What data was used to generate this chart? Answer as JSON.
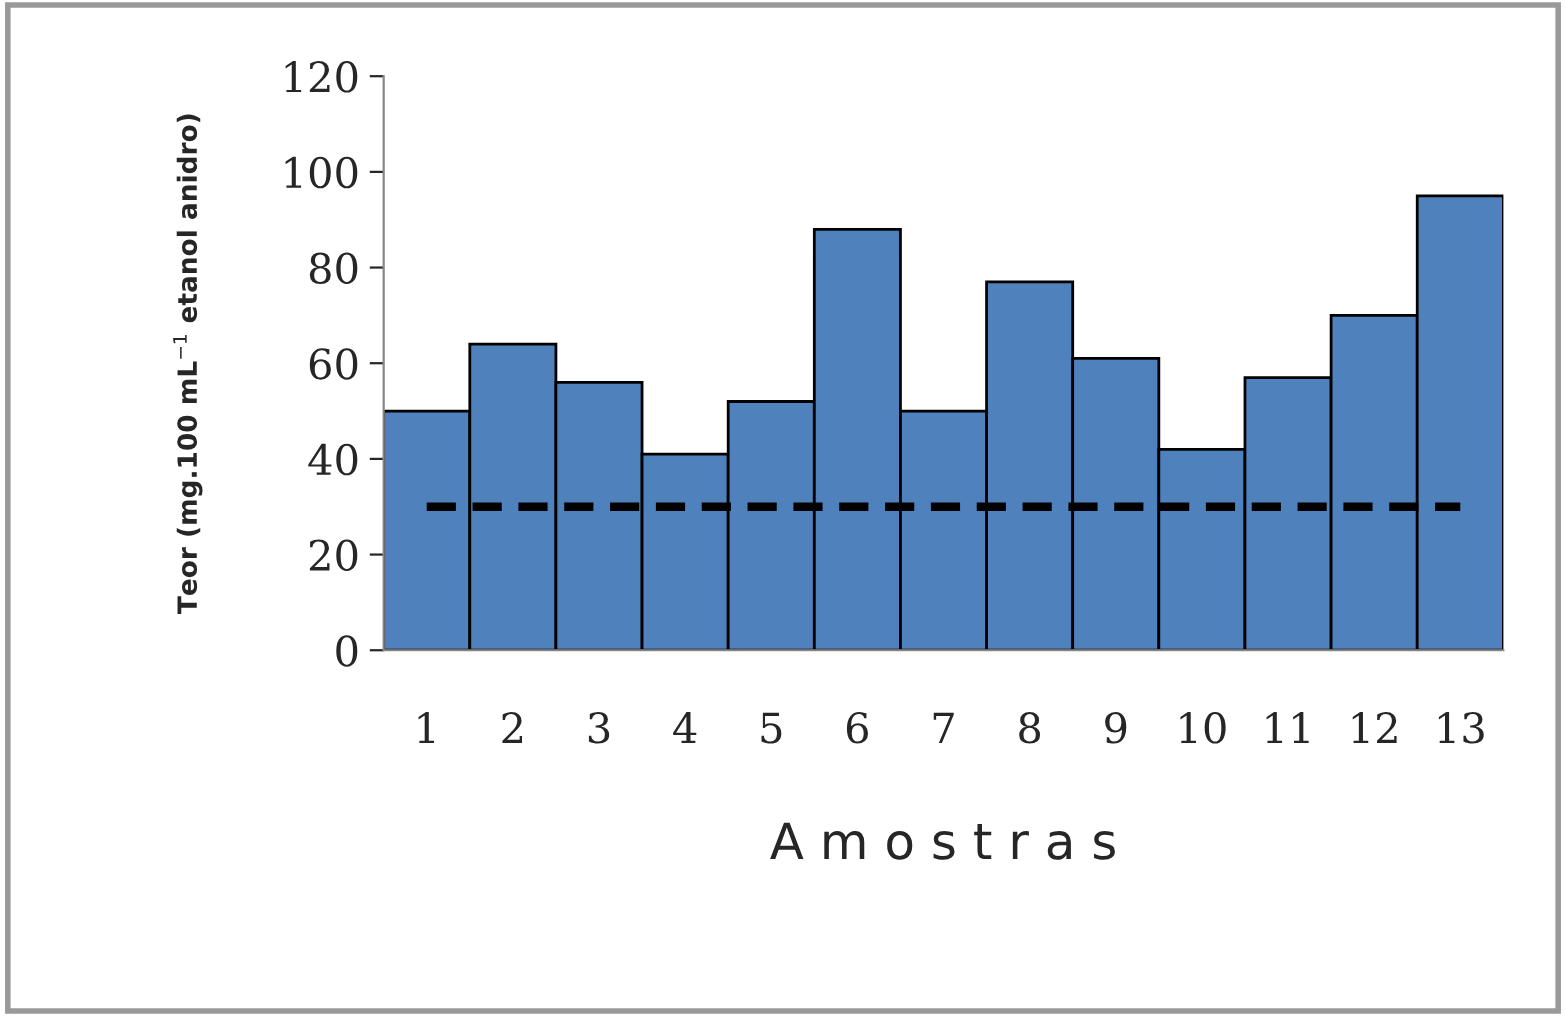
{
  "chart_data": {
    "type": "bar",
    "xlabel": "A m o s t r a s",
    "ylabel": "Teor (mg.100 mL$^{−1}$ etanol anidro)",
    "categories": [
      "1",
      "2",
      "3",
      "4",
      "5",
      "6",
      "7",
      "8",
      "9",
      "10",
      "11",
      "12",
      "13"
    ],
    "values": [
      50,
      64,
      56,
      41,
      52,
      88,
      50,
      77,
      61,
      42,
      57,
      70,
      95
    ],
    "color": "#4f81bd",
    "ylim": [
      0,
      120
    ],
    "yticks": [
      0,
      20,
      40,
      60,
      80,
      100,
      120
    ],
    "grid": false,
    "legend": false,
    "ref_lines": [
      {
        "axis": "y",
        "value": 30,
        "color": "#000000",
        "line_style": "dashed"
      }
    ]
  }
}
